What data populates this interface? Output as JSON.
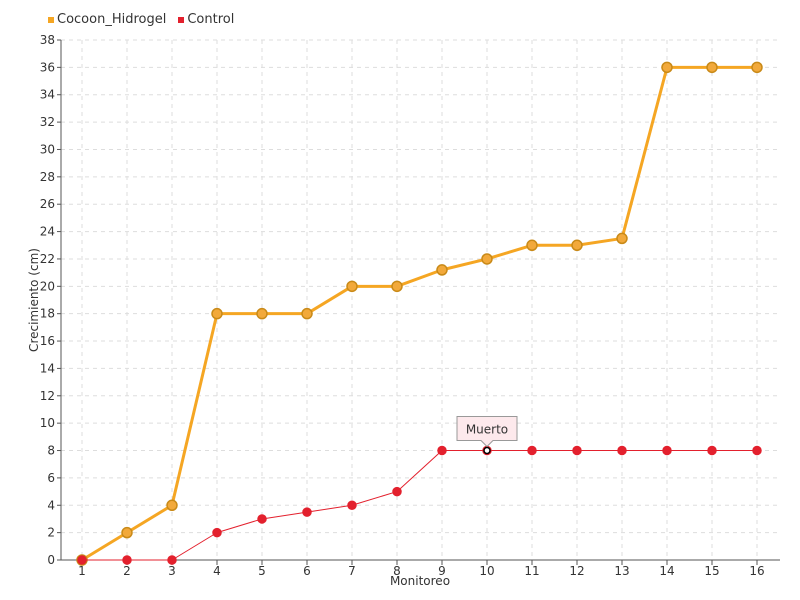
{
  "chart_data": {
    "type": "line",
    "title": "",
    "xlabel": "Monitoreo",
    "ylabel": "Crecimiento (cm)",
    "x": [
      1,
      2,
      3,
      4,
      5,
      6,
      7,
      8,
      9,
      10,
      11,
      12,
      13,
      14,
      15,
      16
    ],
    "ylim": [
      0,
      38
    ],
    "ytick_step": 2,
    "grid": true,
    "legend_position": "top-left",
    "series": [
      {
        "name": "Cocoon_Hidrogel",
        "color": "#f5a623",
        "values": [
          0,
          2,
          4,
          18,
          18,
          18,
          20,
          20,
          21.2,
          22,
          23,
          23,
          23.5,
          36,
          36,
          36
        ]
      },
      {
        "name": "Control",
        "color": "#e3202d",
        "values": [
          0,
          0,
          0,
          2,
          3,
          3.5,
          4,
          5,
          8,
          8,
          8,
          8,
          8,
          8,
          8,
          8
        ]
      }
    ],
    "annotations": [
      {
        "text": "Muerto",
        "series": "Control",
        "x": 10,
        "y": 8
      }
    ]
  }
}
